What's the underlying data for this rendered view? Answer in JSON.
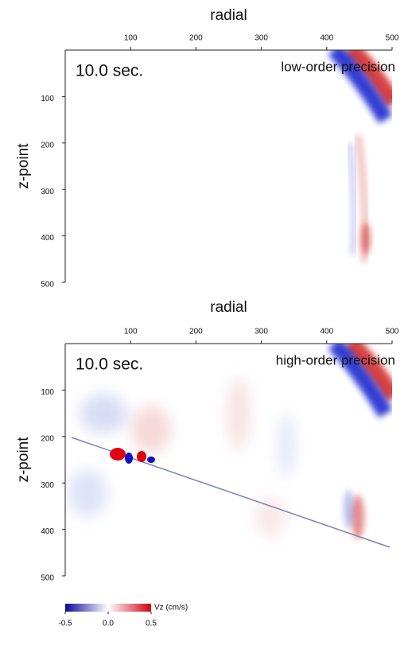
{
  "chart_data": [
    {
      "type": "image",
      "xlabel": "radial",
      "ylabel": "z-point",
      "annotations": [
        "10.0 sec.",
        "low-order precision"
      ],
      "xlim": [
        0,
        500
      ],
      "ylim": [
        0,
        500
      ],
      "invert_y": true,
      "xticks": [
        100,
        200,
        300,
        400,
        500
      ],
      "yticks": [
        100,
        200,
        300,
        400,
        500
      ]
    },
    {
      "type": "image",
      "xlabel": "radial",
      "ylabel": "z-point",
      "annotations": [
        "10.0 sec.",
        "high-order precision"
      ],
      "xlim": [
        0,
        500
      ],
      "ylim": [
        0,
        500
      ],
      "invert_y": true,
      "xticks": [
        100,
        200,
        300,
        400,
        500
      ],
      "yticks": [
        100,
        200,
        300,
        400,
        500
      ]
    },
    {
      "type": "colorbar",
      "label": "Vz (cm/s)",
      "xlim": [
        -0.5,
        0.5
      ],
      "xticks": [
        -0.5,
        {
          "value": 0,
          "label": "0.0"
        },
        0.5
      ],
      "colors": [
        "#0a0a9a",
        "#ffffff",
        "#d00010"
      ]
    }
  ]
}
